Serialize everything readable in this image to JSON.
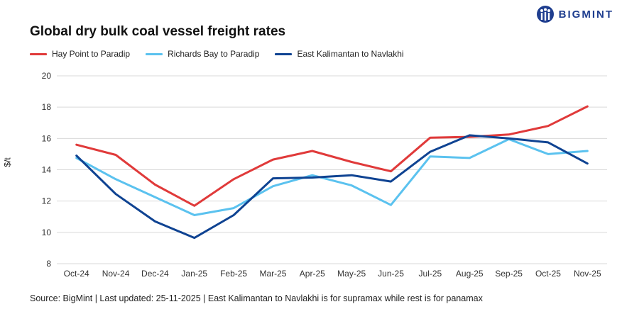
{
  "logo": {
    "text": "BIGMINT",
    "icon": "bigmint-logo-icon",
    "color": "#1f3e8f"
  },
  "footer": {
    "source": "Source: BigMint | Last updated: 25-11-2025 | East Kalimantan to Navlakhi is for supramax while rest is for panamax"
  },
  "chart_data": {
    "type": "line",
    "title": "Global dry bulk coal vessel freight rates",
    "xlabel": "",
    "ylabel": "$/t",
    "ylim": [
      8,
      20
    ],
    "yticks": [
      8,
      10,
      12,
      14,
      16,
      18,
      20
    ],
    "grid": true,
    "legend_position": "top-left",
    "categories": [
      "Oct-24",
      "Nov-24",
      "Dec-24",
      "Jan-25",
      "Feb-25",
      "Mar-25",
      "Apr-25",
      "May-25",
      "Jun-25",
      "Jul-25",
      "Aug-25",
      "Sep-25",
      "Oct-25",
      "Nov-25"
    ],
    "series": [
      {
        "name": "Hay Point to Paradip",
        "color": "#e03a3a",
        "values": [
          15.6,
          14.95,
          13.05,
          11.7,
          13.4,
          14.65,
          15.2,
          14.5,
          13.9,
          16.05,
          16.1,
          16.25,
          16.8,
          18.05
        ]
      },
      {
        "name": "Richards Bay to Paradip",
        "color": "#5bc2ef",
        "values": [
          14.75,
          13.4,
          12.25,
          11.1,
          11.55,
          12.95,
          13.65,
          13.0,
          11.75,
          14.85,
          14.75,
          15.95,
          15.0,
          15.2
        ]
      },
      {
        "name": "East Kalimantan to Navlakhi",
        "color": "#0f4392",
        "values": [
          14.9,
          12.45,
          10.7,
          9.65,
          11.1,
          13.45,
          13.5,
          13.65,
          13.25,
          15.15,
          16.2,
          16.0,
          15.75,
          14.4
        ]
      }
    ]
  }
}
